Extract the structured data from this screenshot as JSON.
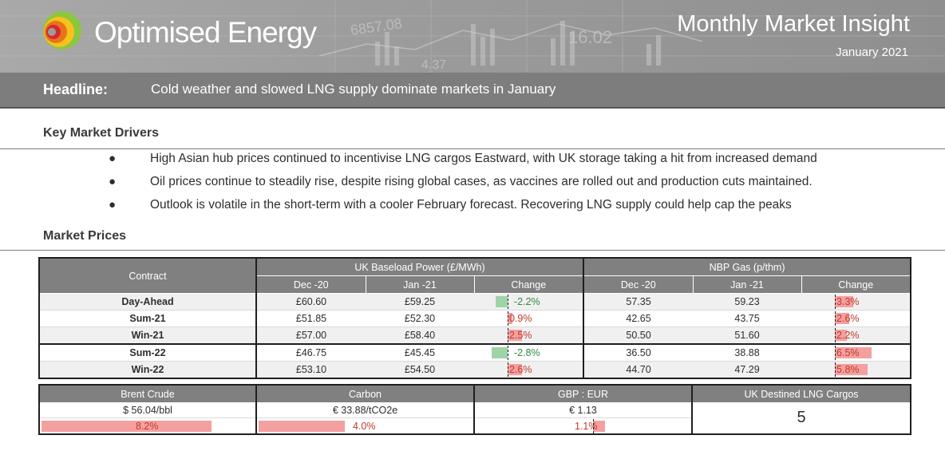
{
  "header": {
    "brand": "Optimised Energy",
    "title": "Monthly Market Insight",
    "date": "January 2021",
    "background_numbers": [
      "6857.08",
      "16.02",
      "4.37"
    ]
  },
  "headline": {
    "label": "Headline:",
    "text": "Cold weather and slowed LNG supply dominate markets in January"
  },
  "drivers": {
    "title": "Key Market Drivers",
    "items": [
      "High Asian hub prices continued to incentivise LNG cargos Eastward, with UK storage taking a hit from increased demand",
      "Oil prices continue to steadily rise, despite rising global cases, as vaccines are rolled out and production cuts maintained.",
      "Outlook is volatile in the short-term with a cooler February forecast. Recovering LNG supply could help cap the peaks"
    ]
  },
  "prices": {
    "title": "Market Prices",
    "contract_header": "Contract",
    "power_header": "UK Baseload Power (£/MWh)",
    "gas_header": "NBP Gas (p/thm)",
    "col_dec": "Dec -20",
    "col_jan": "Jan -21",
    "col_change": "Change",
    "rows": [
      {
        "contract": "Day-Ahead",
        "p_dec": "£60.60",
        "p_jan": "£59.25",
        "p_chg": "-2.2%",
        "p_chg_val": -2.2,
        "g_dec": "57.35",
        "g_jan": "59.23",
        "g_chg": "3.3%",
        "g_chg_val": 3.3
      },
      {
        "contract": "Sum-21",
        "p_dec": "£51.85",
        "p_jan": "£52.30",
        "p_chg": "0.9%",
        "p_chg_val": 0.9,
        "g_dec": "42.65",
        "g_jan": "43.75",
        "g_chg": "2.6%",
        "g_chg_val": 2.6
      },
      {
        "contract": "Win-21",
        "p_dec": "£57.00",
        "p_jan": "£58.40",
        "p_chg": "2.5%",
        "p_chg_val": 2.5,
        "g_dec": "50.50",
        "g_jan": "51.60",
        "g_chg": "2.2%",
        "g_chg_val": 2.2
      },
      {
        "contract": "Sum-22",
        "p_dec": "£46.75",
        "p_jan": "£45.45",
        "p_chg": "-2.8%",
        "p_chg_val": -2.8,
        "g_dec": "36.50",
        "g_jan": "38.88",
        "g_chg": "6.5%",
        "g_chg_val": 6.5
      },
      {
        "contract": "Win-22",
        "p_dec": "£53.10",
        "p_jan": "£54.50",
        "p_chg": "2.6%",
        "p_chg_val": 2.6,
        "g_dec": "44.70",
        "g_jan": "47.29",
        "g_chg": "5.8%",
        "g_chg_val": 5.8
      }
    ]
  },
  "summary": {
    "brent_header": "Brent Crude",
    "brent_value": "$ 56.04/bbl",
    "brent_change": "8.2%",
    "brent_change_val": 8.2,
    "carbon_header": "Carbon",
    "carbon_value": "€ 33.88/tCO2e",
    "carbon_change": "4.0%",
    "carbon_change_val": 4.0,
    "fx_header": "GBP : EUR",
    "fx_value": "€ 1.13",
    "fx_change": "1.1%",
    "fx_change_val": 1.1,
    "lng_header": "UK Destined LNG Cargos",
    "lng_value": "5"
  },
  "colors": {
    "banner": "#9c9c9c",
    "headline_bar": "#7d7d7d",
    "table_header": "#808080",
    "positive_bar": "#f4a0a0",
    "negative_bar": "#9fd4a9",
    "positive_text": "#c0392b",
    "negative_text": "#2e8b3e"
  }
}
